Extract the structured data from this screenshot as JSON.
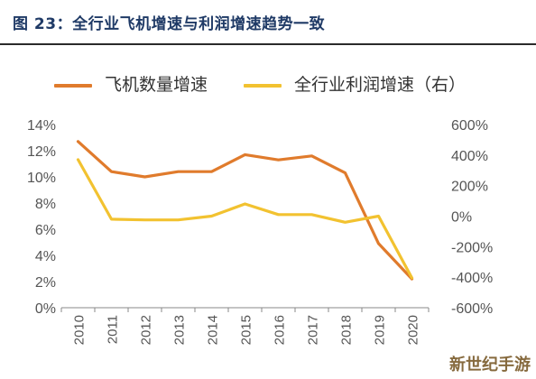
{
  "title": "图 23：全行业飞机增速与利润增速趋势一致",
  "watermark": "新世纪手游",
  "colors": {
    "series1": "#E07B2C",
    "series2": "#F2C230",
    "axis": "#888888",
    "text": "#555555",
    "title": "#1F3A66"
  },
  "chart_data": {
    "type": "line",
    "title": "",
    "xlabel": "",
    "ylabel": "",
    "legend_position": "top",
    "grid": false,
    "x": [
      "2010",
      "2011",
      "2012",
      "2013",
      "2014",
      "2015",
      "2016",
      "2017",
      "2018",
      "2019",
      "2020"
    ],
    "left_axis": {
      "min": 0,
      "max": 14,
      "step": 2,
      "unit": "%",
      "ticks": [
        "0%",
        "2%",
        "4%",
        "6%",
        "8%",
        "10%",
        "12%",
        "14%"
      ]
    },
    "right_axis": {
      "min": -600,
      "max": 600,
      "step": 200,
      "unit": "%",
      "ticks": [
        "-600%",
        "-400%",
        "-200%",
        "0%",
        "200%",
        "400%",
        "600%"
      ]
    },
    "series": [
      {
        "name": "飞机数量增速",
        "axis": "left",
        "color": "#E07B2C",
        "values": [
          12.7,
          10.4,
          10.0,
          10.4,
          10.4,
          11.7,
          11.3,
          11.6,
          10.3,
          4.9,
          2.2
        ]
      },
      {
        "name": "全行业利润增速（右）",
        "axis": "right",
        "color": "#F2C230",
        "values": [
          370,
          -20,
          -25,
          -25,
          0,
          80,
          10,
          10,
          -40,
          0,
          -405
        ]
      }
    ]
  }
}
